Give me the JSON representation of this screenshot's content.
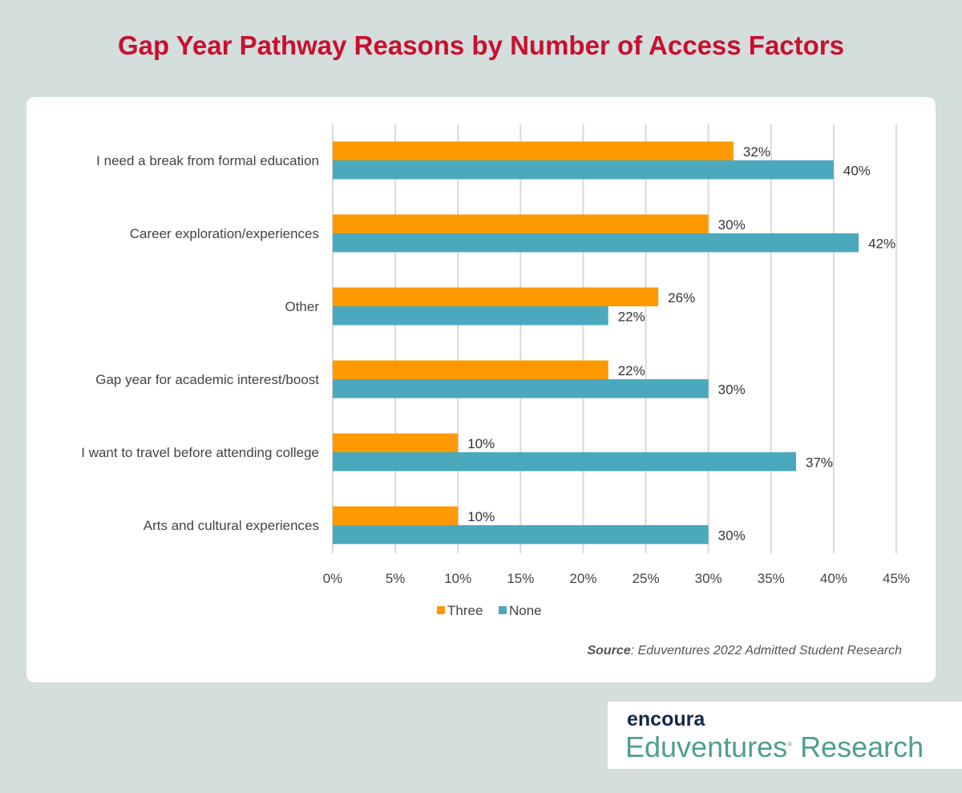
{
  "title": "Gap Year Pathway Reasons by Number of Access Factors",
  "source": {
    "label": "Source",
    "text": ": Eduventures 2022 Admitted Student Research"
  },
  "logo": {
    "brand": "encoura",
    "product": "Eduventures",
    "product_suffix": "Research"
  },
  "chart_data": {
    "type": "bar",
    "orientation": "horizontal",
    "categories": [
      "I need a break from formal education",
      "Career exploration/experiences",
      "Other",
      "Gap year for academic interest/boost",
      "I want to travel before attending college",
      "Arts and cultural experiences"
    ],
    "series": [
      {
        "name": "Three",
        "color": "#FF9900",
        "values": [
          32,
          30,
          26,
          22,
          10,
          10
        ],
        "labels": [
          "32%",
          "30%",
          "26%",
          "22%",
          "10%",
          "10%"
        ]
      },
      {
        "name": "None",
        "color": "#4AA9BD",
        "values": [
          40,
          42,
          22,
          30,
          37,
          30
        ],
        "labels": [
          "40%",
          "42%",
          "22%",
          "30%",
          "37%",
          "30%"
        ]
      }
    ],
    "xlim": [
      0,
      45
    ],
    "xticks": [
      "0%",
      "5%",
      "10%",
      "15%",
      "20%",
      "25%",
      "30%",
      "35%",
      "40%",
      "45%"
    ],
    "grid": true,
    "legend": "bottom"
  }
}
